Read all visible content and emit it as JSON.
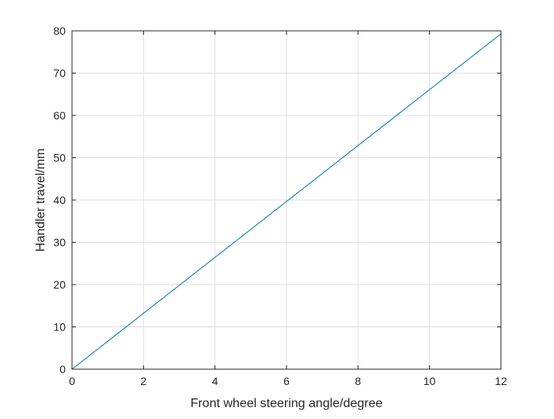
{
  "chart_data": {
    "type": "line",
    "title": "",
    "xlabel": "Front wheel steering angle/degree",
    "ylabel": "Handler travel/mm",
    "xlim": [
      0,
      12
    ],
    "ylim": [
      0,
      80
    ],
    "xticks": [
      0,
      2,
      4,
      6,
      8,
      10,
      12
    ],
    "yticks": [
      0,
      10,
      20,
      30,
      40,
      50,
      60,
      70,
      80
    ],
    "grid": true,
    "legend": "none",
    "series": [
      {
        "color": "#0072BD",
        "x": [
          0,
          12
        ],
        "y": [
          0,
          79.3
        ]
      }
    ]
  }
}
